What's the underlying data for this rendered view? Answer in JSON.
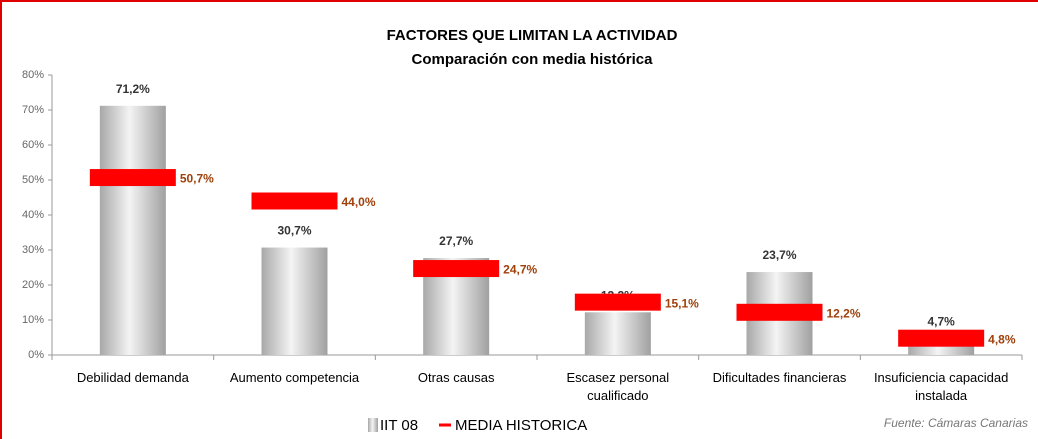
{
  "chart_data": {
    "type": "bar",
    "title": "FACTORES QUE LIMITAN LA ACTIVIDAD",
    "subtitle": "Comparación con media histórica",
    "categories": [
      "Debilidad demanda",
      "Aumento competencia",
      "Otras causas",
      "Escasez personal cualificado",
      "Dificultades financieras",
      "Insuficiencia capacidad instalada"
    ],
    "series": [
      {
        "name": "IIT 08",
        "type": "bar",
        "color": "#c8c8c8",
        "values": [
          71.2,
          30.7,
          27.7,
          12.2,
          23.7,
          4.7
        ],
        "value_labels": [
          "71,2%",
          "30,7%",
          "27,7%",
          "12,2%",
          "23,7%",
          "4,7%"
        ]
      },
      {
        "name": "MEDIA HISTORICA",
        "type": "marker",
        "color": "#ff0000",
        "values": [
          50.7,
          44.0,
          24.7,
          15.1,
          12.2,
          4.8
        ],
        "value_labels": [
          "50,7%",
          "44,0%",
          "24,7%",
          "15,1%",
          "12,2%",
          "4,8%"
        ]
      }
    ],
    "ylim": [
      0,
      80
    ],
    "yticks": [
      {
        "value": 0,
        "label": "0%"
      },
      {
        "value": 10,
        "label": "10%"
      },
      {
        "value": 20,
        "label": "20%"
      },
      {
        "value": 30,
        "label": "30%"
      },
      {
        "value": 40,
        "label": "40%"
      },
      {
        "value": 50,
        "label": "50%"
      },
      {
        "value": 60,
        "label": "60%"
      },
      {
        "value": 70,
        "label": "70%"
      },
      {
        "value": 80,
        "label": "80%"
      }
    ],
    "source": "Fuente: Cámaras Canarias"
  }
}
